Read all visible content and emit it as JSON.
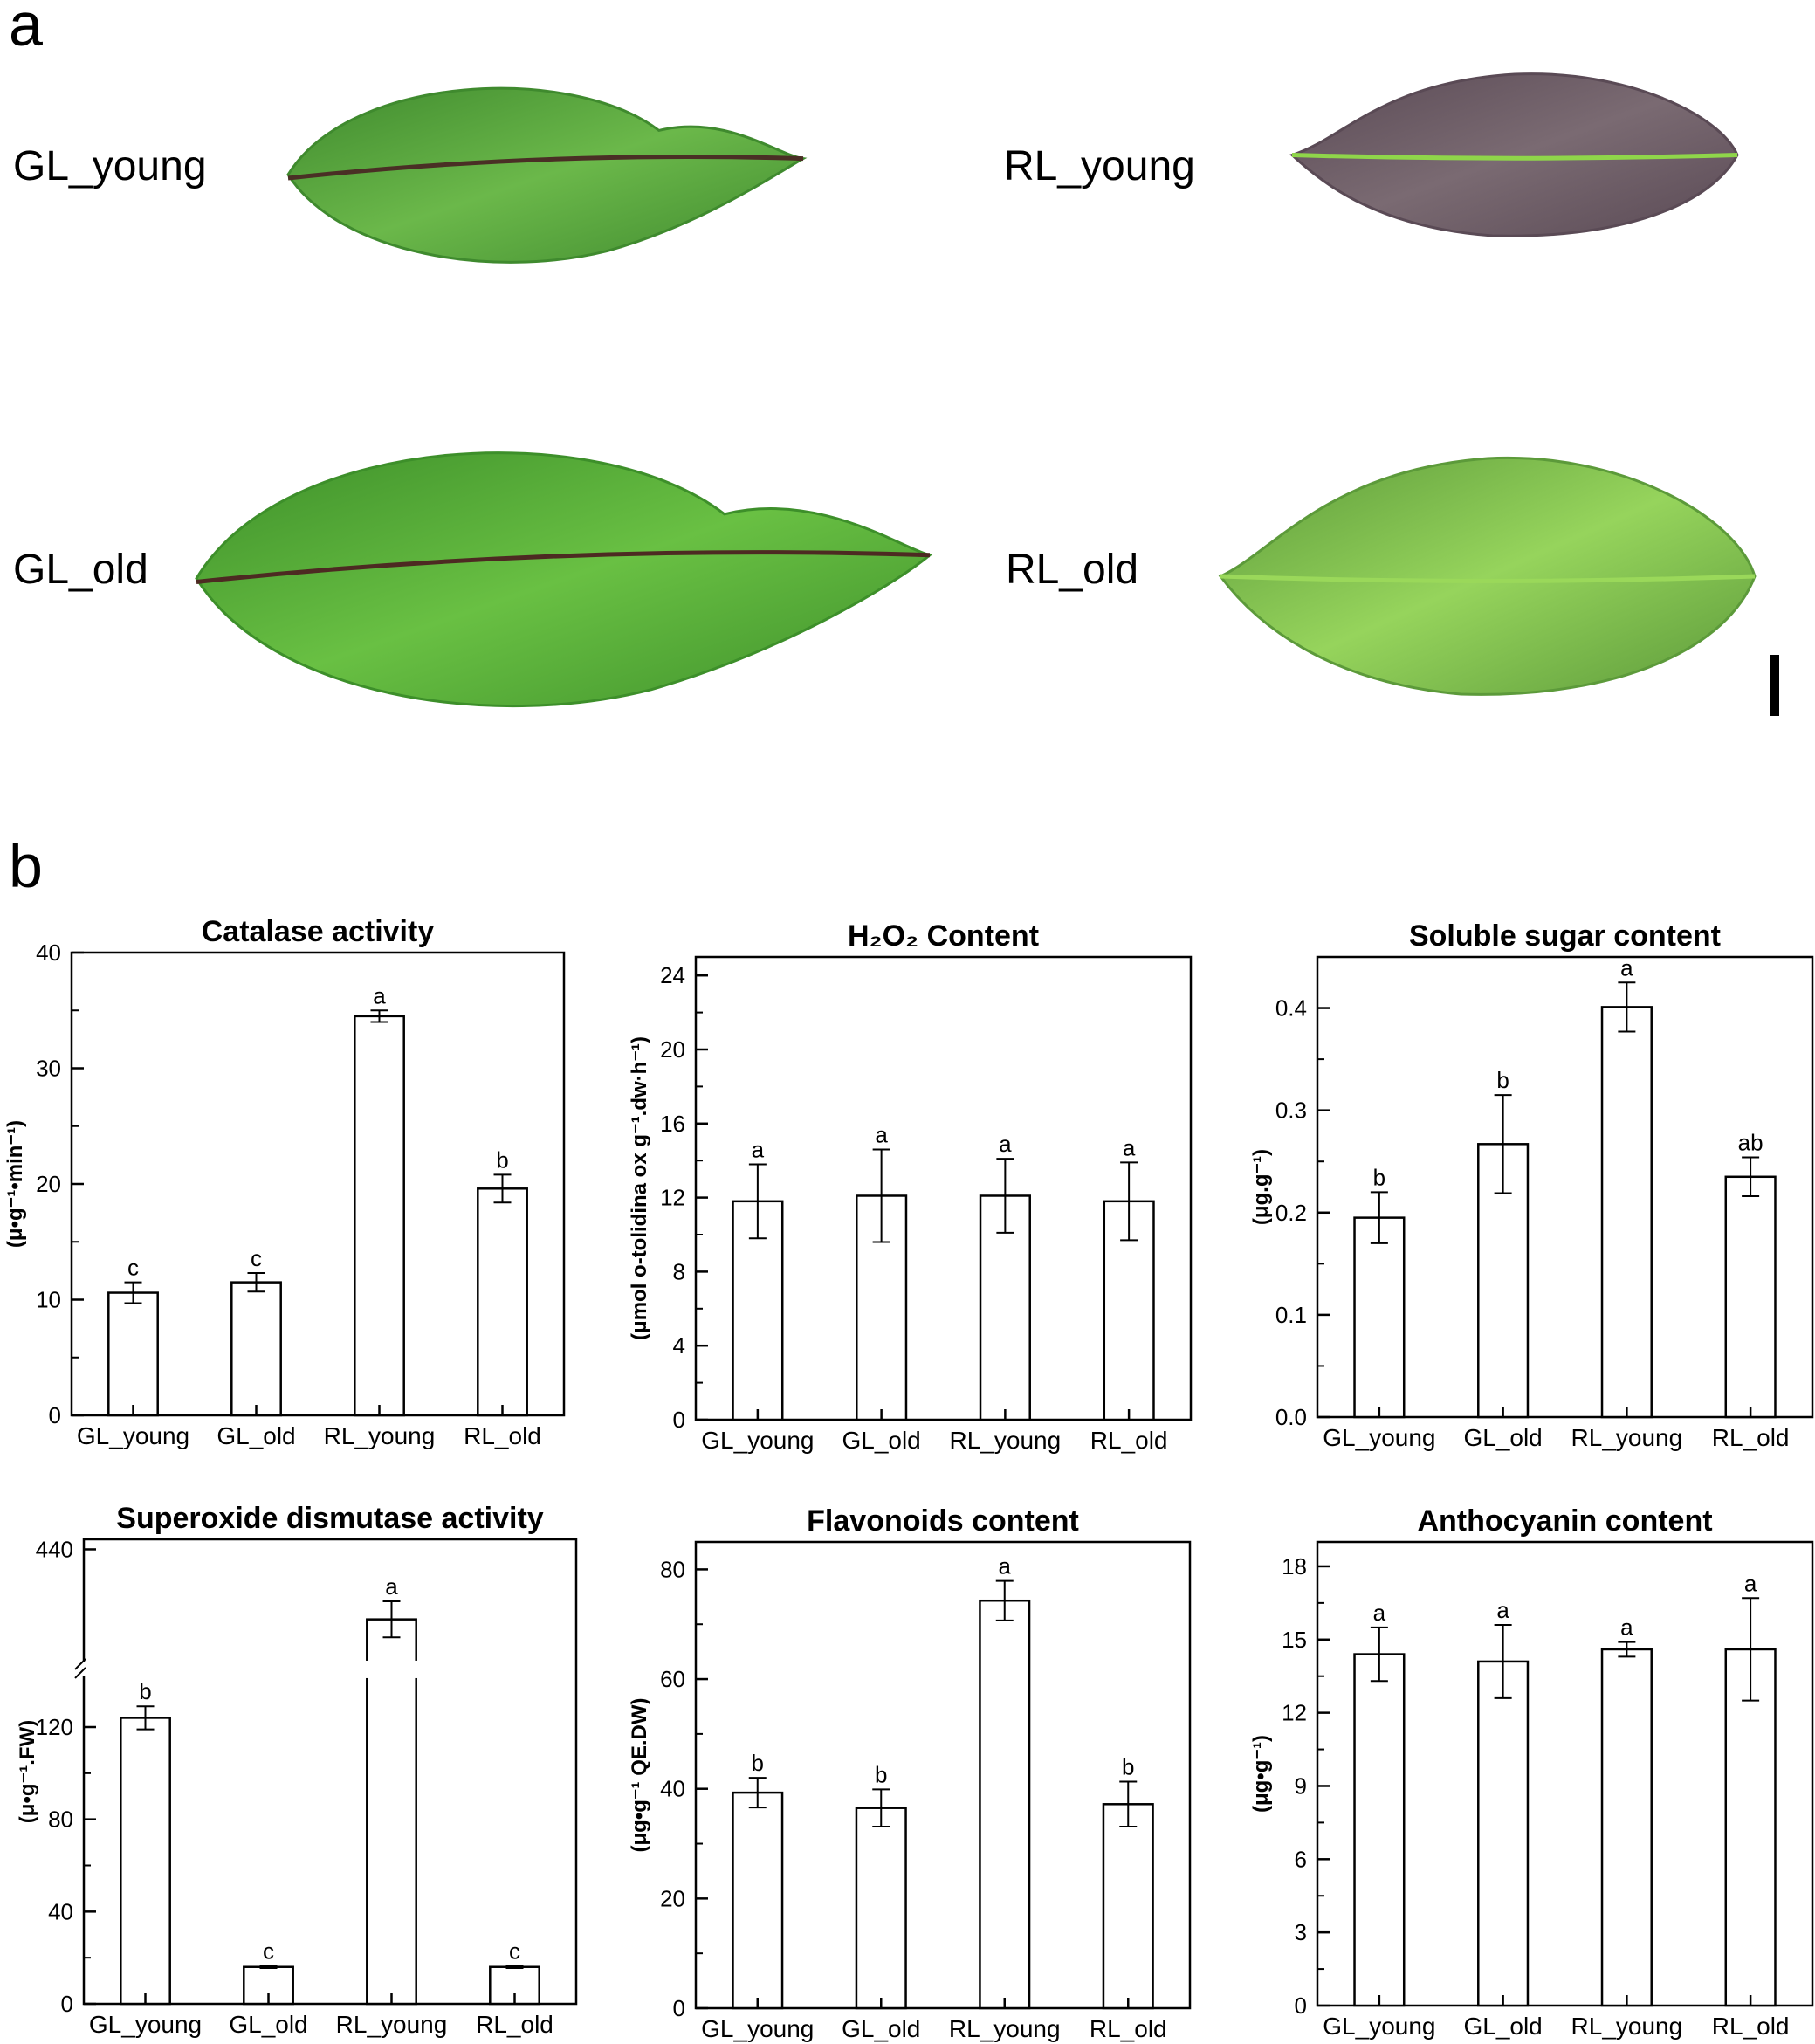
{
  "panels": {
    "a": {
      "label": "a",
      "photos": [
        {
          "label": "GL_young",
          "colors": {
            "fill": "#3f8a2e",
            "light": "#6bb84a",
            "vein": "#4a2f25"
          }
        },
        {
          "label": "RL_young",
          "colors": {
            "fill": "#5a4a55",
            "light": "#7a6a72",
            "vein": "#8fd64a"
          }
        },
        {
          "label": "GL_old",
          "colors": {
            "fill": "#3d8f2a",
            "light": "#69c043",
            "vein": "#4d2a22"
          }
        },
        {
          "label": "RL_old",
          "colors": {
            "fill": "#5c9a3a",
            "light": "#96d45c",
            "vein": "#9ad85a"
          }
        }
      ]
    },
    "b": {
      "label": "b"
    }
  },
  "chart_data": [
    {
      "type": "bar",
      "title": "Catalase activity",
      "ylabel": "(μ•g⁻¹•min⁻¹)",
      "categories": [
        "GL_young",
        "GL_old",
        "RL_young",
        "RL_old"
      ],
      "values": [
        10.6,
        11.5,
        34.5,
        19.6
      ],
      "errors": [
        0.9,
        0.8,
        0.5,
        1.2
      ],
      "letters": [
        "c",
        "c",
        "a",
        "b"
      ],
      "ylim": [
        0,
        40
      ],
      "ticks": [
        "0",
        "10",
        "20",
        "30",
        "40"
      ],
      "tick_values": [
        0,
        10,
        20,
        30,
        40
      ],
      "minor_ticks": [
        5,
        15,
        25,
        35
      ]
    },
    {
      "type": "bar",
      "title": "H₂O₂ Content",
      "ylabel": "(μmol o-tolidina ox g⁻¹.dw·h⁻¹)",
      "categories": [
        "GL_young",
        "GL_old",
        "RL_young",
        "RL_old"
      ],
      "values": [
        11.8,
        12.1,
        12.1,
        11.8
      ],
      "errors": [
        2.0,
        2.5,
        2.0,
        2.1
      ],
      "letters": [
        "a",
        "a",
        "a",
        "a"
      ],
      "ylim": [
        0,
        25
      ],
      "ticks": [
        "0",
        "4",
        "8",
        "12",
        "16",
        "20",
        "24"
      ],
      "tick_values": [
        0,
        4,
        8,
        12,
        16,
        20,
        24
      ],
      "minor_ticks": [
        2,
        6,
        10,
        14,
        18,
        22
      ]
    },
    {
      "type": "bar",
      "title": "Soluble sugar content",
      "ylabel": "(μg.g⁻¹)",
      "categories": [
        "GL_young",
        "GL_old",
        "RL_young",
        "RL_old"
      ],
      "values": [
        0.195,
        0.267,
        0.401,
        0.235
      ],
      "errors": [
        0.025,
        0.048,
        0.024,
        0.019
      ],
      "letters": [
        "b",
        "b",
        "a",
        "ab"
      ],
      "ylim": [
        0,
        0.45
      ],
      "ticks": [
        "0.0",
        "0.1",
        "0.2",
        "0.3",
        "0.4"
      ],
      "tick_values": [
        0,
        0.1,
        0.2,
        0.3,
        0.4
      ],
      "minor_ticks": [
        0.05,
        0.15,
        0.25,
        0.35
      ]
    },
    {
      "type": "bar",
      "title": "Superoxide dismutase activity",
      "ylabel": "(μ•g⁻¹.FW)",
      "categories": [
        "GL_young",
        "GL_old",
        "RL_young",
        "RL_old"
      ],
      "values": [
        124,
        16,
        405,
        16
      ],
      "errors": [
        5,
        0.5,
        9,
        0.5
      ],
      "letters": [
        "b",
        "c",
        "a",
        "c"
      ],
      "axis_break": [
        145,
        380
      ],
      "ylim": [
        0,
        445
      ],
      "ticks": [
        "0",
        "40",
        "80",
        "120",
        "440"
      ],
      "tick_values": [
        0,
        40,
        80,
        120,
        440
      ],
      "minor_ticks": [
        20,
        60,
        100
      ]
    },
    {
      "type": "bar",
      "title": "Flavonoids content",
      "ylabel": "(μg•g⁻¹ QE.DW)",
      "categories": [
        "GL_young",
        "GL_old",
        "RL_young",
        "RL_old"
      ],
      "values": [
        39.3,
        36.5,
        74.3,
        37.2
      ],
      "errors": [
        2.7,
        3.4,
        3.6,
        4.1
      ],
      "letters": [
        "b",
        "b",
        "a",
        "b"
      ],
      "ylim": [
        0,
        85
      ],
      "ticks": [
        "0",
        "20",
        "40",
        "60",
        "80"
      ],
      "tick_values": [
        0,
        20,
        40,
        60,
        80
      ],
      "minor_ticks": [
        10,
        30,
        50,
        70
      ]
    },
    {
      "type": "bar",
      "title": "Anthocyanin content",
      "ylabel": "(μg•g⁻¹)",
      "categories": [
        "GL_young",
        "GL_old",
        "RL_young",
        "RL_old"
      ],
      "values": [
        14.4,
        14.1,
        14.6,
        14.6
      ],
      "errors": [
        1.1,
        1.5,
        0.3,
        2.1
      ],
      "letters": [
        "a",
        "a",
        "a",
        "a"
      ],
      "ylim": [
        0,
        19
      ],
      "ticks": [
        "0",
        "3",
        "6",
        "9",
        "12",
        "15",
        "18"
      ],
      "tick_values": [
        0,
        3,
        6,
        9,
        12,
        15,
        18
      ],
      "minor_ticks": [
        1.5,
        4.5,
        7.5,
        10.5,
        13.5,
        16.5
      ]
    }
  ]
}
